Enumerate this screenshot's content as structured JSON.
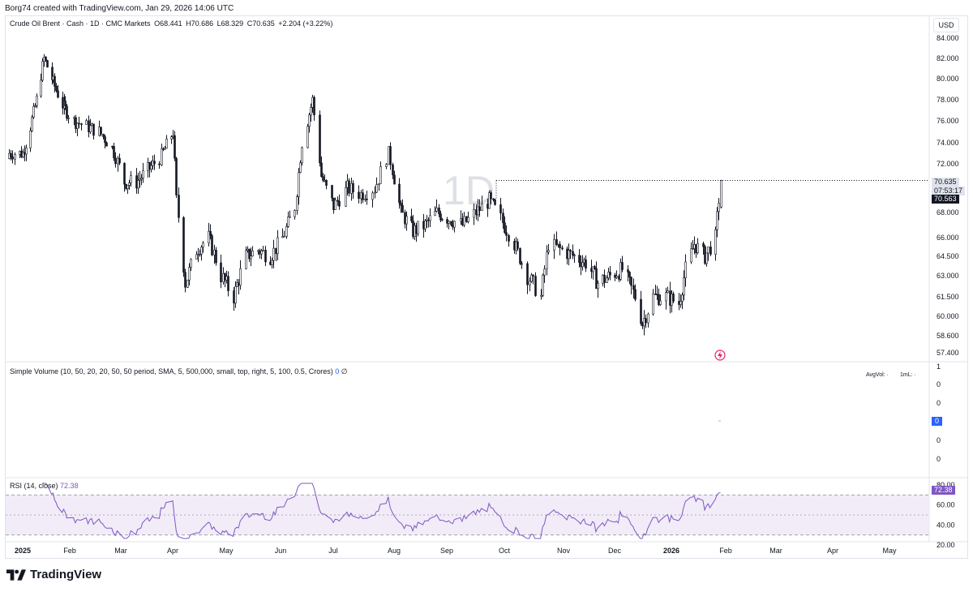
{
  "caption": "Borg74 created with TradingView.com, Jan 29, 2026 14:06 UTC",
  "legend": {
    "symbol": "Crude Oil Brent · Cash · 1D · CMC Markets",
    "open": "O68.441",
    "high": "H70.686",
    "low": "L68.329",
    "close": "C70.635",
    "change": "+2.204 (+3.22%)"
  },
  "currency": "USD",
  "watermark": "1D",
  "price_tags": {
    "last": "70.635",
    "countdown": "07:53:17",
    "marker": "70.563"
  },
  "volume": {
    "legend": "Simple Volume (10, 50, 20, 20, 50, 50 period, SMA, 5, 500,000, small, top, right, 5, 100, 0.5, Crores)",
    "value": "0",
    "slash": "∅",
    "avgvol_label": "AvgVol: ·",
    "ml_label": "1mL: ·",
    "axis_labels": [
      "1",
      "0",
      "0",
      "0",
      "0",
      "0"
    ],
    "current_tag": "0"
  },
  "rsi": {
    "legend": "RSI (14, close)",
    "value": "72.38",
    "axis_labels": [
      "80.00",
      "60.00",
      "40.00",
      "20.00"
    ]
  },
  "brand": "TradingView",
  "colors": {
    "up": "#131722",
    "down": "#131722",
    "rsi_line": "#7e57c2",
    "rsi_band": "#ede7f6",
    "grid": "#eef0f4"
  },
  "chart_data": {
    "type": "candlestick",
    "title": "Crude Oil Brent · Cash · 1D · CMC Markets",
    "price_axis": {
      "ticks": [
        "84.000",
        "82.000",
        "80.000",
        "78.000",
        "76.000",
        "74.000",
        "72.000",
        "68.000",
        "66.000",
        "64.500",
        "63.000",
        "61.500",
        "60.000",
        "58.600",
        "57.400"
      ]
    },
    "time_axis": {
      "labels": [
        "2025",
        "Feb",
        "Mar",
        "Apr",
        "May",
        "Jun",
        "Jul",
        "Aug",
        "Sep",
        "Oct",
        "Nov",
        "Dec",
        "2026",
        "Feb",
        "Mar",
        "Apr",
        "May"
      ]
    },
    "close_path": [
      [
        "2025-01-01",
        73.0
      ],
      [
        "2025-01-06",
        75.5
      ],
      [
        "2025-01-10",
        78.0
      ],
      [
        "2025-01-15",
        82.0
      ],
      [
        "2025-01-20",
        80.0
      ],
      [
        "2025-01-27",
        77.5
      ],
      [
        "2025-02-03",
        76.0
      ],
      [
        "2025-02-10",
        75.5
      ],
      [
        "2025-02-17",
        75.0
      ],
      [
        "2025-02-24",
        73.5
      ],
      [
        "2025-03-03",
        70.5
      ],
      [
        "2025-03-10",
        70.5
      ],
      [
        "2025-03-17",
        71.5
      ],
      [
        "2025-03-24",
        72.5
      ],
      [
        "2025-04-01",
        75.0
      ],
      [
        "2025-04-03",
        69.0
      ],
      [
        "2025-04-08",
        62.5
      ],
      [
        "2025-04-14",
        65.0
      ],
      [
        "2025-04-21",
        66.0
      ],
      [
        "2025-04-28",
        63.0
      ],
      [
        "2025-05-05",
        61.5
      ],
      [
        "2025-05-12",
        64.5
      ],
      [
        "2025-05-19",
        65.0
      ],
      [
        "2025-05-26",
        64.5
      ],
      [
        "2025-06-02",
        66.0
      ],
      [
        "2025-06-09",
        68.5
      ],
      [
        "2025-06-13",
        74.0
      ],
      [
        "2025-06-19",
        78.0
      ],
      [
        "2025-06-24",
        71.0
      ],
      [
        "2025-07-01",
        68.5
      ],
      [
        "2025-07-08",
        70.0
      ],
      [
        "2025-07-15",
        69.5
      ],
      [
        "2025-07-22",
        70.0
      ],
      [
        "2025-07-29",
        73.0
      ],
      [
        "2025-08-05",
        68.0
      ],
      [
        "2025-08-12",
        66.5
      ],
      [
        "2025-08-19",
        67.0
      ],
      [
        "2025-08-26",
        68.0
      ],
      [
        "2025-09-02",
        67.5
      ],
      [
        "2025-09-09",
        67.0
      ],
      [
        "2025-09-16",
        68.0
      ],
      [
        "2025-09-23",
        69.0
      ],
      [
        "2025-09-29",
        67.5
      ],
      [
        "2025-10-06",
        65.5
      ],
      [
        "2025-10-13",
        63.0
      ],
      [
        "2025-10-20",
        61.5
      ],
      [
        "2025-10-24",
        65.5
      ],
      [
        "2025-10-31",
        65.0
      ],
      [
        "2025-11-07",
        64.5
      ],
      [
        "2025-11-14",
        64.0
      ],
      [
        "2025-11-21",
        62.5
      ],
      [
        "2025-11-28",
        63.0
      ],
      [
        "2025-12-05",
        63.5
      ],
      [
        "2025-12-12",
        61.5
      ],
      [
        "2025-12-16",
        59.5
      ],
      [
        "2025-12-22",
        61.5
      ],
      [
        "2025-12-29",
        61.5
      ],
      [
        "2026-01-05",
        61.0
      ],
      [
        "2026-01-09",
        63.5
      ],
      [
        "2026-01-14",
        65.5
      ],
      [
        "2026-01-20",
        64.5
      ],
      [
        "2026-01-26",
        66.0
      ],
      [
        "2026-01-29",
        70.635
      ]
    ],
    "rsi_range": [
      20,
      80
    ],
    "rsi_bands": [
      30,
      50,
      70
    ],
    "rsi_last": 72.38
  }
}
